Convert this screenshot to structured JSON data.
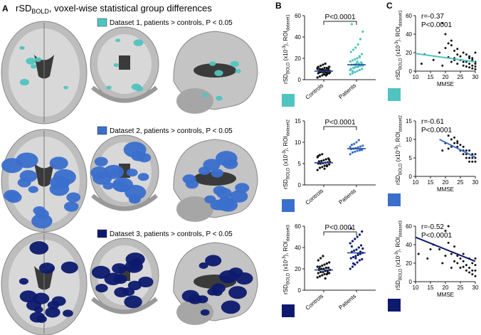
{
  "panels": {
    "a": "A",
    "b": "B",
    "c": "C"
  },
  "header": {
    "prefix": "rSD",
    "sub": "BOLD",
    "suffix": ", voxel-wise statistical group differences"
  },
  "datasets": [
    {
      "legend": "Dataset 1, patients > controls, P < 0.05",
      "color": "#4fc4c0",
      "ylabel_main": "rSD",
      "ylabel_sub1": "BOLD",
      "ylabel_mid": " (x10",
      "ylabel_sup": "-3",
      "ylabel_end": "), ROI",
      "ylabel_sub2": "dataset1",
      "b_pvalue": "P<0.0001",
      "c_r": "r=-0.37",
      "c_p": "P<0.0001",
      "b_yticks": [
        "0",
        "20",
        "40",
        "60"
      ],
      "c_yticks": [
        "0",
        "20",
        "40",
        "60"
      ]
    },
    {
      "legend": "Dataset 2, patients > controls, P < 0.05",
      "color": "#3a6fcc",
      "ylabel_main": "rSD",
      "ylabel_sub1": "BOLD",
      "ylabel_mid": " (x10",
      "ylabel_sup": "-3",
      "ylabel_end": "), ROI",
      "ylabel_sub2": "dataset2",
      "b_pvalue": "P<0.0001",
      "c_r": "r=-0.61",
      "c_p": "P<0.0001",
      "b_yticks": [
        "0",
        "5",
        "10",
        "15"
      ],
      "c_yticks": [
        "0",
        "5",
        "10",
        "15"
      ]
    },
    {
      "legend": "Dataset 3, patients > controls, P < 0.05",
      "color": "#0d1a6e",
      "ylabel_main": "rSD",
      "ylabel_sub1": "BOLD",
      "ylabel_mid": " (x10",
      "ylabel_sup": "-3",
      "ylabel_end": "), ROI",
      "ylabel_sub2": "dataset3",
      "b_pvalue": "P<0.0001",
      "c_r": "r=-0.52",
      "c_p": "P<0.0001",
      "b_yticks": [
        "0",
        "20",
        "40",
        "60"
      ],
      "c_yticks": [
        "0",
        "20",
        "40",
        "60"
      ]
    }
  ],
  "group_labels": [
    "Controls",
    "Patients"
  ],
  "c_xticks": [
    "10",
    "15",
    "20",
    "25",
    "30"
  ],
  "c_xlabel": "MMSE",
  "chart_data": [
    {
      "type": "scatter",
      "panel": "B1",
      "categories": [
        "Controls",
        "Patients"
      ],
      "ylim": [
        0,
        60
      ],
      "series": [
        {
          "name": "Controls",
          "mean": 8,
          "values": [
            2,
            3,
            4,
            5,
            5,
            6,
            6,
            7,
            7,
            7,
            8,
            8,
            8,
            8,
            9,
            9,
            9,
            10,
            10,
            10,
            11,
            11,
            12,
            12,
            13,
            14,
            15,
            6,
            7,
            8,
            9,
            5,
            4,
            10,
            11,
            7,
            9,
            8,
            6,
            12
          ]
        },
        {
          "name": "Patients",
          "mean": 14,
          "values": [
            5,
            6,
            7,
            8,
            9,
            10,
            10,
            11,
            12,
            12,
            13,
            13,
            14,
            14,
            15,
            15,
            16,
            17,
            18,
            19,
            20,
            22,
            24,
            26,
            28,
            30,
            33,
            38,
            45,
            52,
            11,
            12,
            13,
            16,
            9,
            8,
            14,
            17,
            21,
            15
          ]
        }
      ]
    },
    {
      "type": "scatter",
      "panel": "C1",
      "xlabel": "MMSE",
      "xlim": [
        10,
        30
      ],
      "ylim": [
        0,
        60
      ],
      "r": -0.37,
      "x": [
        12,
        13,
        16,
        18,
        19,
        20,
        20,
        21,
        21,
        22,
        22,
        23,
        23,
        24,
        24,
        25,
        25,
        26,
        26,
        27,
        27,
        27,
        28,
        28,
        28,
        29,
        29,
        29,
        30,
        30,
        30,
        30,
        22,
        24,
        26,
        28,
        29,
        30,
        19,
        23
      ],
      "y": [
        8,
        18,
        12,
        20,
        52,
        40,
        25,
        30,
        15,
        33,
        10,
        22,
        14,
        18,
        8,
        16,
        12,
        20,
        6,
        18,
        10,
        5,
        14,
        8,
        4,
        12,
        6,
        3,
        10,
        5,
        2,
        8,
        28,
        24,
        10,
        16,
        14,
        20,
        6,
        12
      ],
      "fit": {
        "x": [
          10,
          30
        ],
        "y": [
          19,
          10
        ]
      }
    },
    {
      "type": "scatter",
      "panel": "B2",
      "categories": [
        "Controls",
        "Patients"
      ],
      "ylim": [
        0,
        15
      ],
      "series": [
        {
          "name": "Controls",
          "mean": 5.2,
          "values": [
            3.5,
            4,
            4.2,
            4.5,
            4.6,
            4.8,
            5,
            5,
            5.1,
            5.2,
            5.3,
            5.4,
            5.5,
            5.6,
            5.8,
            6,
            6.2,
            6.5,
            7,
            7.2,
            3.8,
            4.4,
            5.9,
            6.8
          ]
        },
        {
          "name": "Patients",
          "mean": 8.5,
          "values": [
            7.2,
            7.6,
            7.8,
            8,
            8.1,
            8.2,
            8.4,
            8.5,
            8.6,
            8.8,
            9,
            9.2,
            9.4,
            9.6,
            10,
            10.5,
            8.3,
            8.9
          ]
        }
      ]
    },
    {
      "type": "scatter",
      "panel": "C2",
      "xlabel": "MMSE",
      "xlim": [
        10,
        30
      ],
      "ylim": [
        0,
        15
      ],
      "r": -0.61,
      "x": [
        19,
        20,
        21,
        22,
        22,
        23,
        23,
        24,
        24,
        25,
        25,
        26,
        26,
        27,
        27,
        28,
        28,
        28,
        29,
        29,
        29,
        30,
        30,
        30,
        21,
        24,
        26,
        27
      ],
      "y": [
        7,
        9,
        11,
        8,
        10,
        9,
        10.5,
        8,
        9,
        7,
        8.5,
        8,
        6,
        7,
        6,
        5,
        7,
        4,
        6,
        4,
        5,
        4,
        6,
        5,
        7.5,
        9.5,
        7,
        5
      ],
      "fit": {
        "x": [
          18,
          30
        ],
        "y": [
          10,
          5.2
        ]
      }
    },
    {
      "type": "scatter",
      "panel": "B3",
      "categories": [
        "Controls",
        "Patients"
      ],
      "ylim": [
        0,
        60
      ],
      "series": [
        {
          "name": "Controls",
          "mean": 19,
          "values": [
            12,
            13,
            14,
            15,
            15,
            16,
            16,
            17,
            17,
            18,
            18,
            19,
            19,
            20,
            20,
            21,
            21,
            22,
            22,
            23,
            24,
            25,
            26,
            28,
            30,
            32,
            11,
            16,
            19,
            20
          ]
        },
        {
          "name": "Patients",
          "mean": 35,
          "values": [
            20,
            22,
            24,
            26,
            28,
            29,
            30,
            31,
            32,
            33,
            34,
            35,
            36,
            37,
            38,
            40,
            42,
            44,
            46,
            48,
            50,
            52,
            55,
            58,
            25,
            30,
            34,
            36,
            39,
            41
          ]
        }
      ]
    },
    {
      "type": "scatter",
      "panel": "C3",
      "xlabel": "MMSE",
      "xlim": [
        10,
        30
      ],
      "ylim": [
        0,
        60
      ],
      "r": -0.52,
      "x": [
        11,
        14,
        16,
        18,
        19,
        20,
        21,
        21,
        22,
        22,
        23,
        24,
        24,
        25,
        25,
        26,
        26,
        27,
        27,
        28,
        28,
        28,
        29,
        29,
        29,
        30,
        30,
        30,
        30,
        15,
        20,
        23,
        26
      ],
      "y": [
        30,
        25,
        40,
        35,
        20,
        55,
        42,
        60,
        30,
        15,
        38,
        28,
        20,
        25,
        15,
        22,
        30,
        18,
        12,
        25,
        15,
        10,
        20,
        12,
        8,
        18,
        12,
        6,
        25,
        35,
        28,
        22,
        16
      ],
      "fit": {
        "x": [
          10,
          30
        ],
        "y": [
          48,
          22
        ]
      }
    }
  ]
}
